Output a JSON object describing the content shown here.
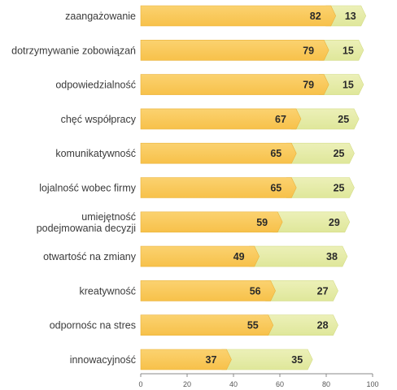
{
  "chart_data": {
    "type": "bar",
    "orientation": "horizontal",
    "stacked": true,
    "categories": [
      [
        "zaangażowanie"
      ],
      [
        "dotrzymywanie zobowiązań"
      ],
      [
        "odpowiedzialność"
      ],
      [
        "chęć współpracy"
      ],
      [
        "komunikatywność"
      ],
      [
        "lojalność wobec firmy"
      ],
      [
        "umiejętność",
        "podejmowania decyzji"
      ],
      [
        "otwartość na zmiany"
      ],
      [
        "kreatywność"
      ],
      [
        "odpornośc na stres"
      ],
      [
        "innowacyjność"
      ]
    ],
    "series": [
      {
        "values": [
          82,
          79,
          79,
          67,
          65,
          65,
          59,
          49,
          56,
          55,
          37
        ],
        "color": "#f7c14a"
      },
      {
        "values": [
          13,
          15,
          15,
          25,
          25,
          25,
          29,
          38,
          27,
          28,
          35
        ],
        "color": "#dfe79a"
      }
    ],
    "x_ticks": [
      "0",
      "20",
      "40",
      "60",
      "80",
      "100"
    ],
    "xlim": [
      0,
      100
    ],
    "grid": false,
    "legend": "none"
  }
}
